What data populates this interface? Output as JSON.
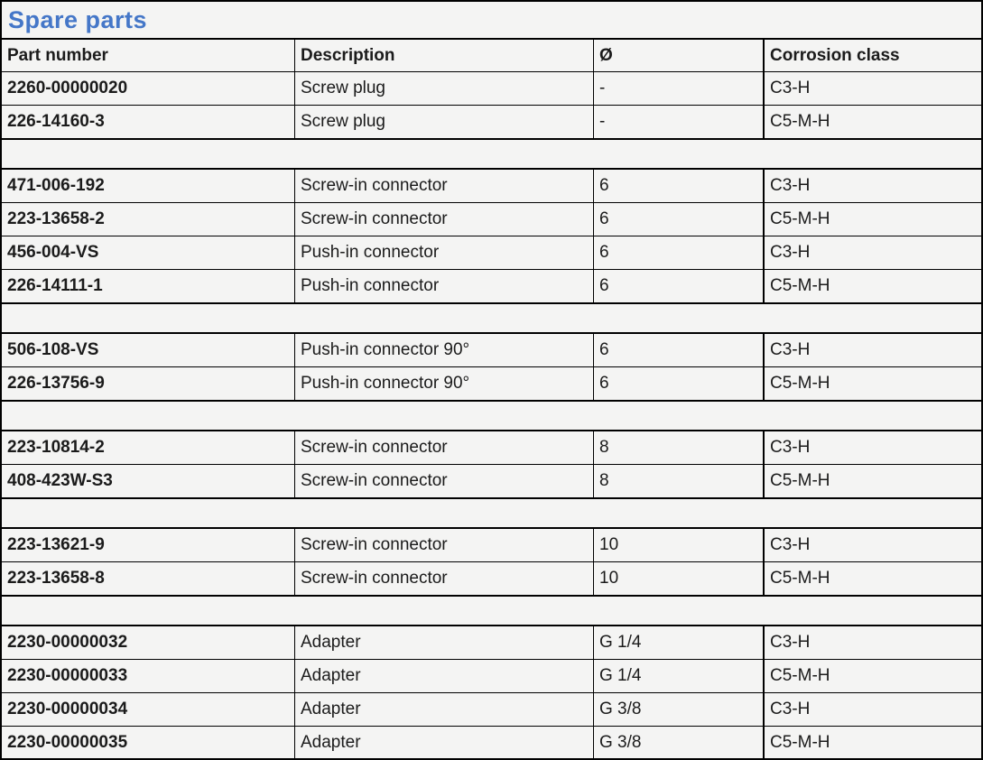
{
  "page": {
    "title": "Spare parts",
    "title_color": "#4577c8",
    "background_color": "#f4f4f3",
    "border_color": "#000000"
  },
  "table": {
    "columns": [
      "Part number",
      "Description",
      "Ø",
      "Corrosion class"
    ],
    "sections": [
      {
        "rows": [
          [
            "2260-00000020",
            "Screw plug",
            "-",
            "C3-H"
          ],
          [
            "226-14160-3",
            "Screw plug",
            "-",
            "C5-M-H"
          ]
        ]
      },
      {
        "rows": [
          [
            "471-006-192",
            "Screw-in connector",
            "6",
            "C3-H"
          ],
          [
            "223-13658-2",
            "Screw-in connector",
            "6",
            "C5-M-H"
          ],
          [
            "456-004-VS",
            "Push-in connector",
            "6",
            "C3-H"
          ],
          [
            "226-14111-1",
            "Push-in connector",
            "6",
            "C5-M-H"
          ]
        ]
      },
      {
        "rows": [
          [
            "506-108-VS",
            "Push-in connector 90°",
            "6",
            "C3-H"
          ],
          [
            "226-13756-9",
            "Push-in connector 90°",
            "6",
            "C5-M-H"
          ]
        ]
      },
      {
        "rows": [
          [
            "223-10814-2",
            "Screw-in connector",
            "8",
            "C3-H"
          ],
          [
            "408-423W-S3",
            "Screw-in connector",
            "8",
            "C5-M-H"
          ]
        ]
      },
      {
        "rows": [
          [
            "223-13621-9",
            "Screw-in connector",
            "10",
            "C3-H"
          ],
          [
            "223-13658-8",
            "Screw-in connector",
            "10",
            "C5-M-H"
          ]
        ]
      },
      {
        "rows": [
          [
            "2230-00000032",
            "Adapter",
            "G 1/4",
            "C3-H"
          ],
          [
            "2230-00000033",
            "Adapter",
            "G 1/4",
            "C5-M-H"
          ],
          [
            "2230-00000034",
            "Adapter",
            "G 3/8",
            "C3-H"
          ],
          [
            "2230-00000035",
            "Adapter",
            "G 3/8",
            "C5-M-H"
          ]
        ]
      }
    ]
  }
}
